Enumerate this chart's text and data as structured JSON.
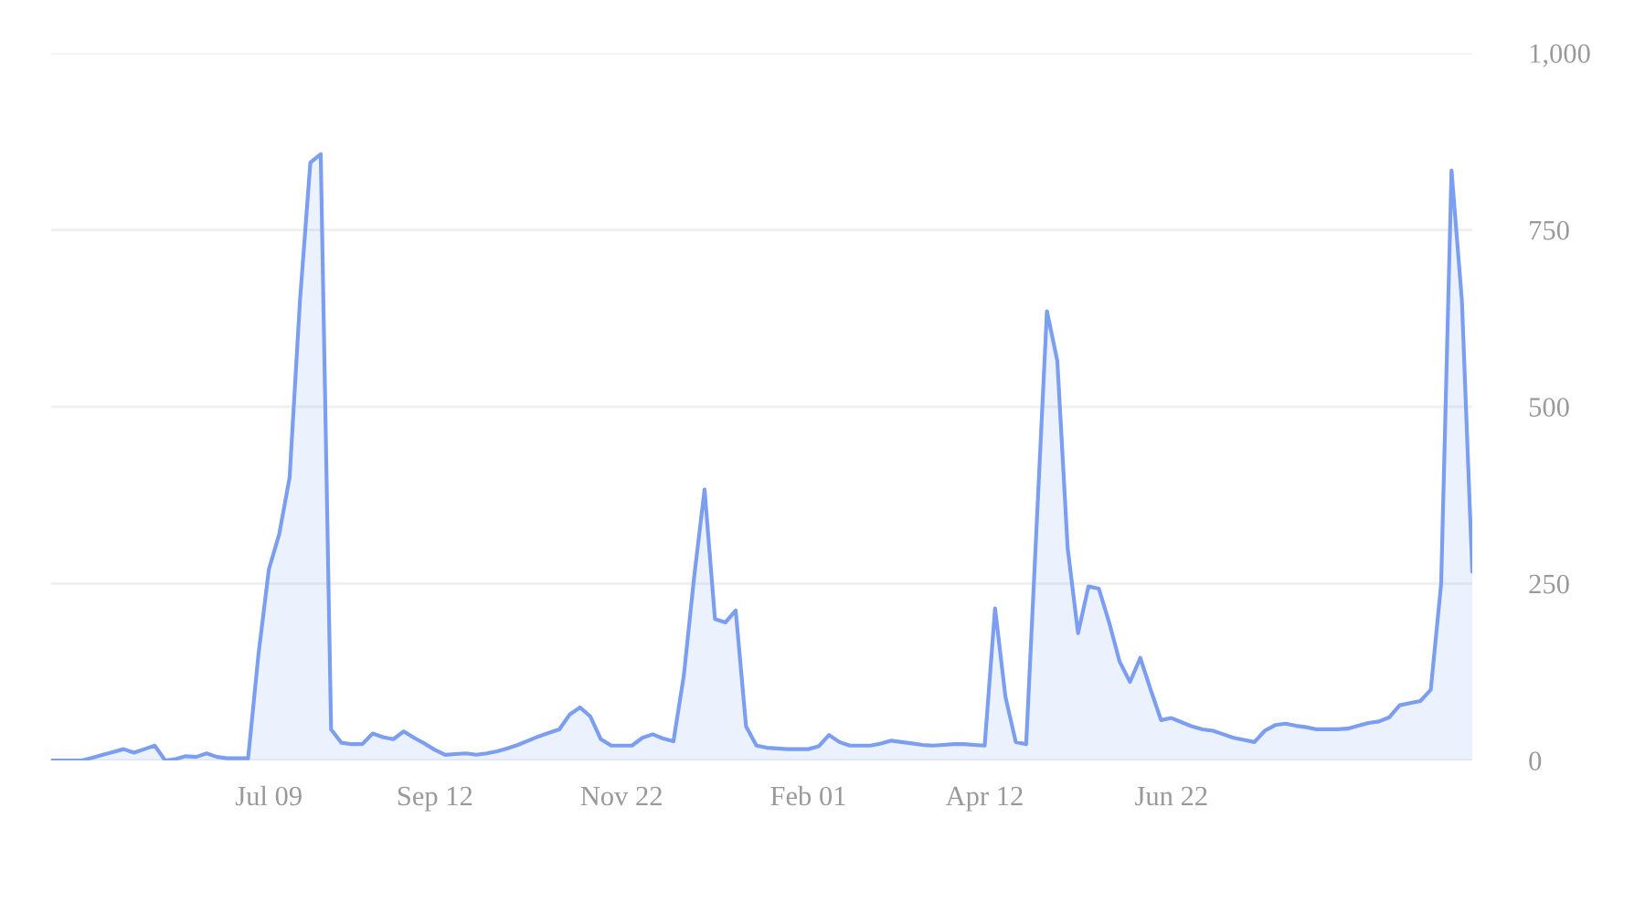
{
  "chart_data": {
    "type": "area",
    "grid": "y",
    "color": "#7b9ef0",
    "categories": [
      null,
      null,
      null,
      null,
      null,
      null,
      null,
      null,
      null,
      null,
      null,
      null,
      null,
      null,
      null,
      null,
      null,
      null,
      null,
      null,
      null,
      "Jul 09",
      null,
      null,
      null,
      null,
      null,
      null,
      null,
      null,
      null,
      null,
      null,
      null,
      null,
      null,
      null,
      "Sep 12",
      null,
      null,
      null,
      null,
      null,
      null,
      null,
      null,
      null,
      null,
      null,
      null,
      null,
      null,
      null,
      null,
      null,
      "Nov 22",
      null,
      null,
      null,
      null,
      null,
      null,
      null,
      null,
      null,
      null,
      null,
      null,
      null,
      null,
      null,
      null,
      null,
      "Feb 01",
      null,
      null,
      null,
      null,
      null,
      null,
      null,
      null,
      null,
      null,
      null,
      null,
      null,
      null,
      null,
      null,
      "Apr 12",
      null,
      null,
      null,
      null,
      null,
      null,
      null,
      null,
      null,
      null,
      null,
      null,
      null,
      null,
      null,
      null,
      null,
      "Jun 22",
      null,
      null,
      null,
      null,
      null,
      null,
      null,
      null,
      null,
      null,
      null,
      null,
      null,
      null,
      null,
      null,
      null,
      null,
      null,
      null,
      null,
      null,
      null,
      null,
      null,
      null,
      null,
      null,
      null
    ],
    "values": [
      0,
      0,
      0,
      0,
      4,
      8,
      12,
      16,
      11,
      16,
      21,
      0,
      2,
      6,
      5,
      10,
      5,
      3,
      3,
      3,
      150,
      270,
      320,
      400,
      650,
      845,
      857,
      44,
      25,
      23,
      23,
      38,
      33,
      30,
      41,
      32,
      24,
      15,
      8,
      9,
      10,
      8,
      10,
      13,
      17,
      22,
      28,
      34,
      39,
      44,
      65,
      75,
      62,
      30,
      21,
      21,
      21,
      32,
      37,
      31,
      27,
      120,
      260,
      383,
      200,
      195,
      212,
      48,
      21,
      18,
      17,
      16,
      16,
      16,
      20,
      36,
      26,
      21,
      21,
      21,
      24,
      28,
      26,
      24,
      22,
      21,
      22,
      23,
      23,
      22,
      21,
      215,
      90,
      26,
      23,
      330,
      635,
      565,
      300,
      180,
      246,
      243,
      195,
      140,
      111,
      145,
      100,
      57,
      60,
      54,
      48,
      44,
      42,
      37,
      32,
      29,
      26,
      42,
      50,
      52,
      49,
      47,
      44,
      44,
      44,
      45,
      49,
      53,
      55,
      61,
      78,
      81,
      84,
      100,
      250,
      834,
      650,
      267
    ],
    "ylim": [
      0,
      1000
    ],
    "yticks": [
      0,
      250,
      500,
      750,
      {
        "value": 1000,
        "label": "1,000"
      }
    ]
  }
}
